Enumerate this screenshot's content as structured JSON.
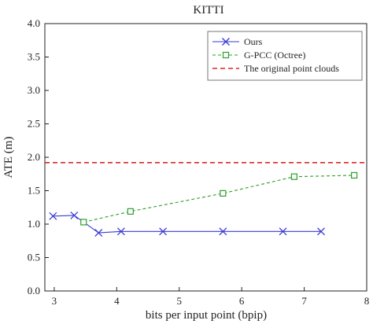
{
  "chart_data": {
    "type": "line",
    "title": "KITTI",
    "xlabel": "bits per input point (bpip)",
    "ylabel": "ATE (m)",
    "xlim": [
      2.85,
      8.0
    ],
    "ylim": [
      0.0,
      4.0
    ],
    "xticks": [
      3,
      4,
      5,
      6,
      7,
      8
    ],
    "yticks": [
      0.0,
      0.5,
      1.0,
      1.5,
      2.0,
      2.5,
      3.0,
      3.5,
      4.0
    ],
    "xtick_labels": [
      "3",
      "4",
      "5",
      "6",
      "7",
      "8"
    ],
    "ytick_labels": [
      "0.0",
      "0.5",
      "1.0",
      "1.5",
      "2.0",
      "2.5",
      "3.0",
      "3.5",
      "4.0"
    ],
    "grid": false,
    "legend_position": "top-right",
    "series": [
      {
        "name": "Ours",
        "color": "#3a3ad6",
        "marker": "x",
        "line_style": "solid",
        "x": [
          2.98,
          3.32,
          3.71,
          4.07,
          4.74,
          5.7,
          6.66,
          7.27
        ],
        "y": [
          1.12,
          1.13,
          0.87,
          0.89,
          0.89,
          0.89,
          0.89,
          0.89
        ]
      },
      {
        "name": "G-PCC (Octree)",
        "color": "#2e9e2e",
        "marker": "square",
        "line_style": "dashed",
        "x": [
          3.47,
          4.22,
          5.7,
          6.84,
          7.8
        ],
        "y": [
          1.03,
          1.19,
          1.46,
          1.71,
          1.73
        ]
      },
      {
        "name": "The original point clouds",
        "color": "#e02424",
        "marker": "none",
        "line_style": "dashed",
        "y": 1.92
      }
    ]
  }
}
